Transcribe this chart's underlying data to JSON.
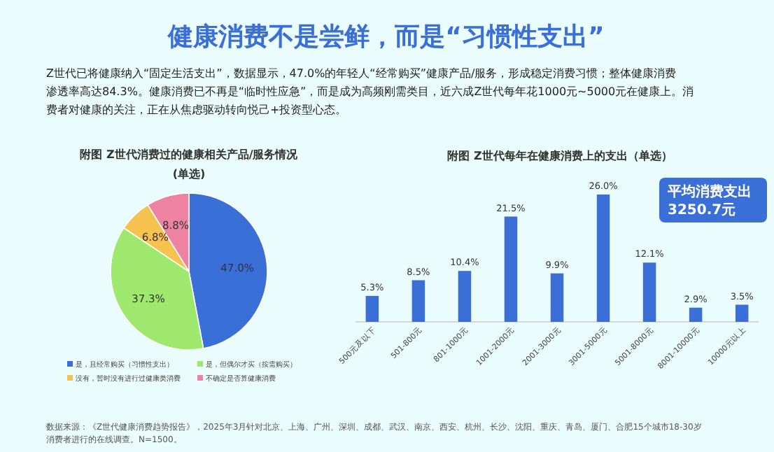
{
  "chart_data": [
    {
      "type": "other",
      "title": "健康消费不是尝鲜，而是“习惯性支出”",
      "subtitle": "Z世代已将健康纳入“固定生活支出”，数据显示，47.0%的年轻人“经常购买”健康产品/服务，形成稳定消费习惯；整体健康消费渗透率高达84.3%。健康消费已不再是“临时性应急”，而是成为高频刚需类目，近六成Z世代每年花1000元~5000元在健康上。消费者对健康的关注，正在从焦虑驱动转向悦己+投资型心态。",
      "annotations": [
        "数据来源：《Z世代健康消费趋势报告》，2025年3月针对北京、上海、广州、深圳、成都、武汉、南京、西安、杭州、长沙、沈阳、重庆、青岛、厦门、合肥15个城市18-30岁消费者进行的在线调查。N=1500。"
      ]
    },
    {
      "type": "pie",
      "title": "附图  Z世代消费过的健康相关产品/服务情况",
      "subtitle": "(单选)",
      "categories": [
        "是，且经常购买（习惯性支出）",
        "是，但偶尔才买（按需购买）",
        "没有，暂时没有进行过健康类消费",
        "不确定是否算健康消费"
      ],
      "values": [
        47.0,
        37.3,
        6.8,
        8.8
      ],
      "colors": [
        "#3a6fd8",
        "#9ee86e",
        "#f6c350",
        "#ee82a2"
      ],
      "value_labels": [
        "47.0%",
        "37.3%",
        "6.8%",
        "8.8%"
      ],
      "legend": "bottom"
    },
    {
      "type": "bar",
      "title": "附图  Z世代每年在健康消费上的支出（单选）",
      "categories": [
        "500元及以下",
        "501-800元",
        "801-1000元",
        "1001-2000元",
        "2001-3000元",
        "3001-5000元",
        "5001-8000元",
        "8001-10000元",
        "10000元以上"
      ],
      "values": [
        5.3,
        8.5,
        10.4,
        21.5,
        9.9,
        26.0,
        12.1,
        2.9,
        3.5
      ],
      "color": "#3a6fd8",
      "value_labels": [
        "5.3%",
        "8.5%",
        "10.4%",
        "21.5%",
        "9.9%",
        "26.0%",
        "12.1%",
        "2.9%",
        "3.5%"
      ],
      "annotations": [
        "平均消费支出\n3250.7元"
      ]
    }
  ]
}
